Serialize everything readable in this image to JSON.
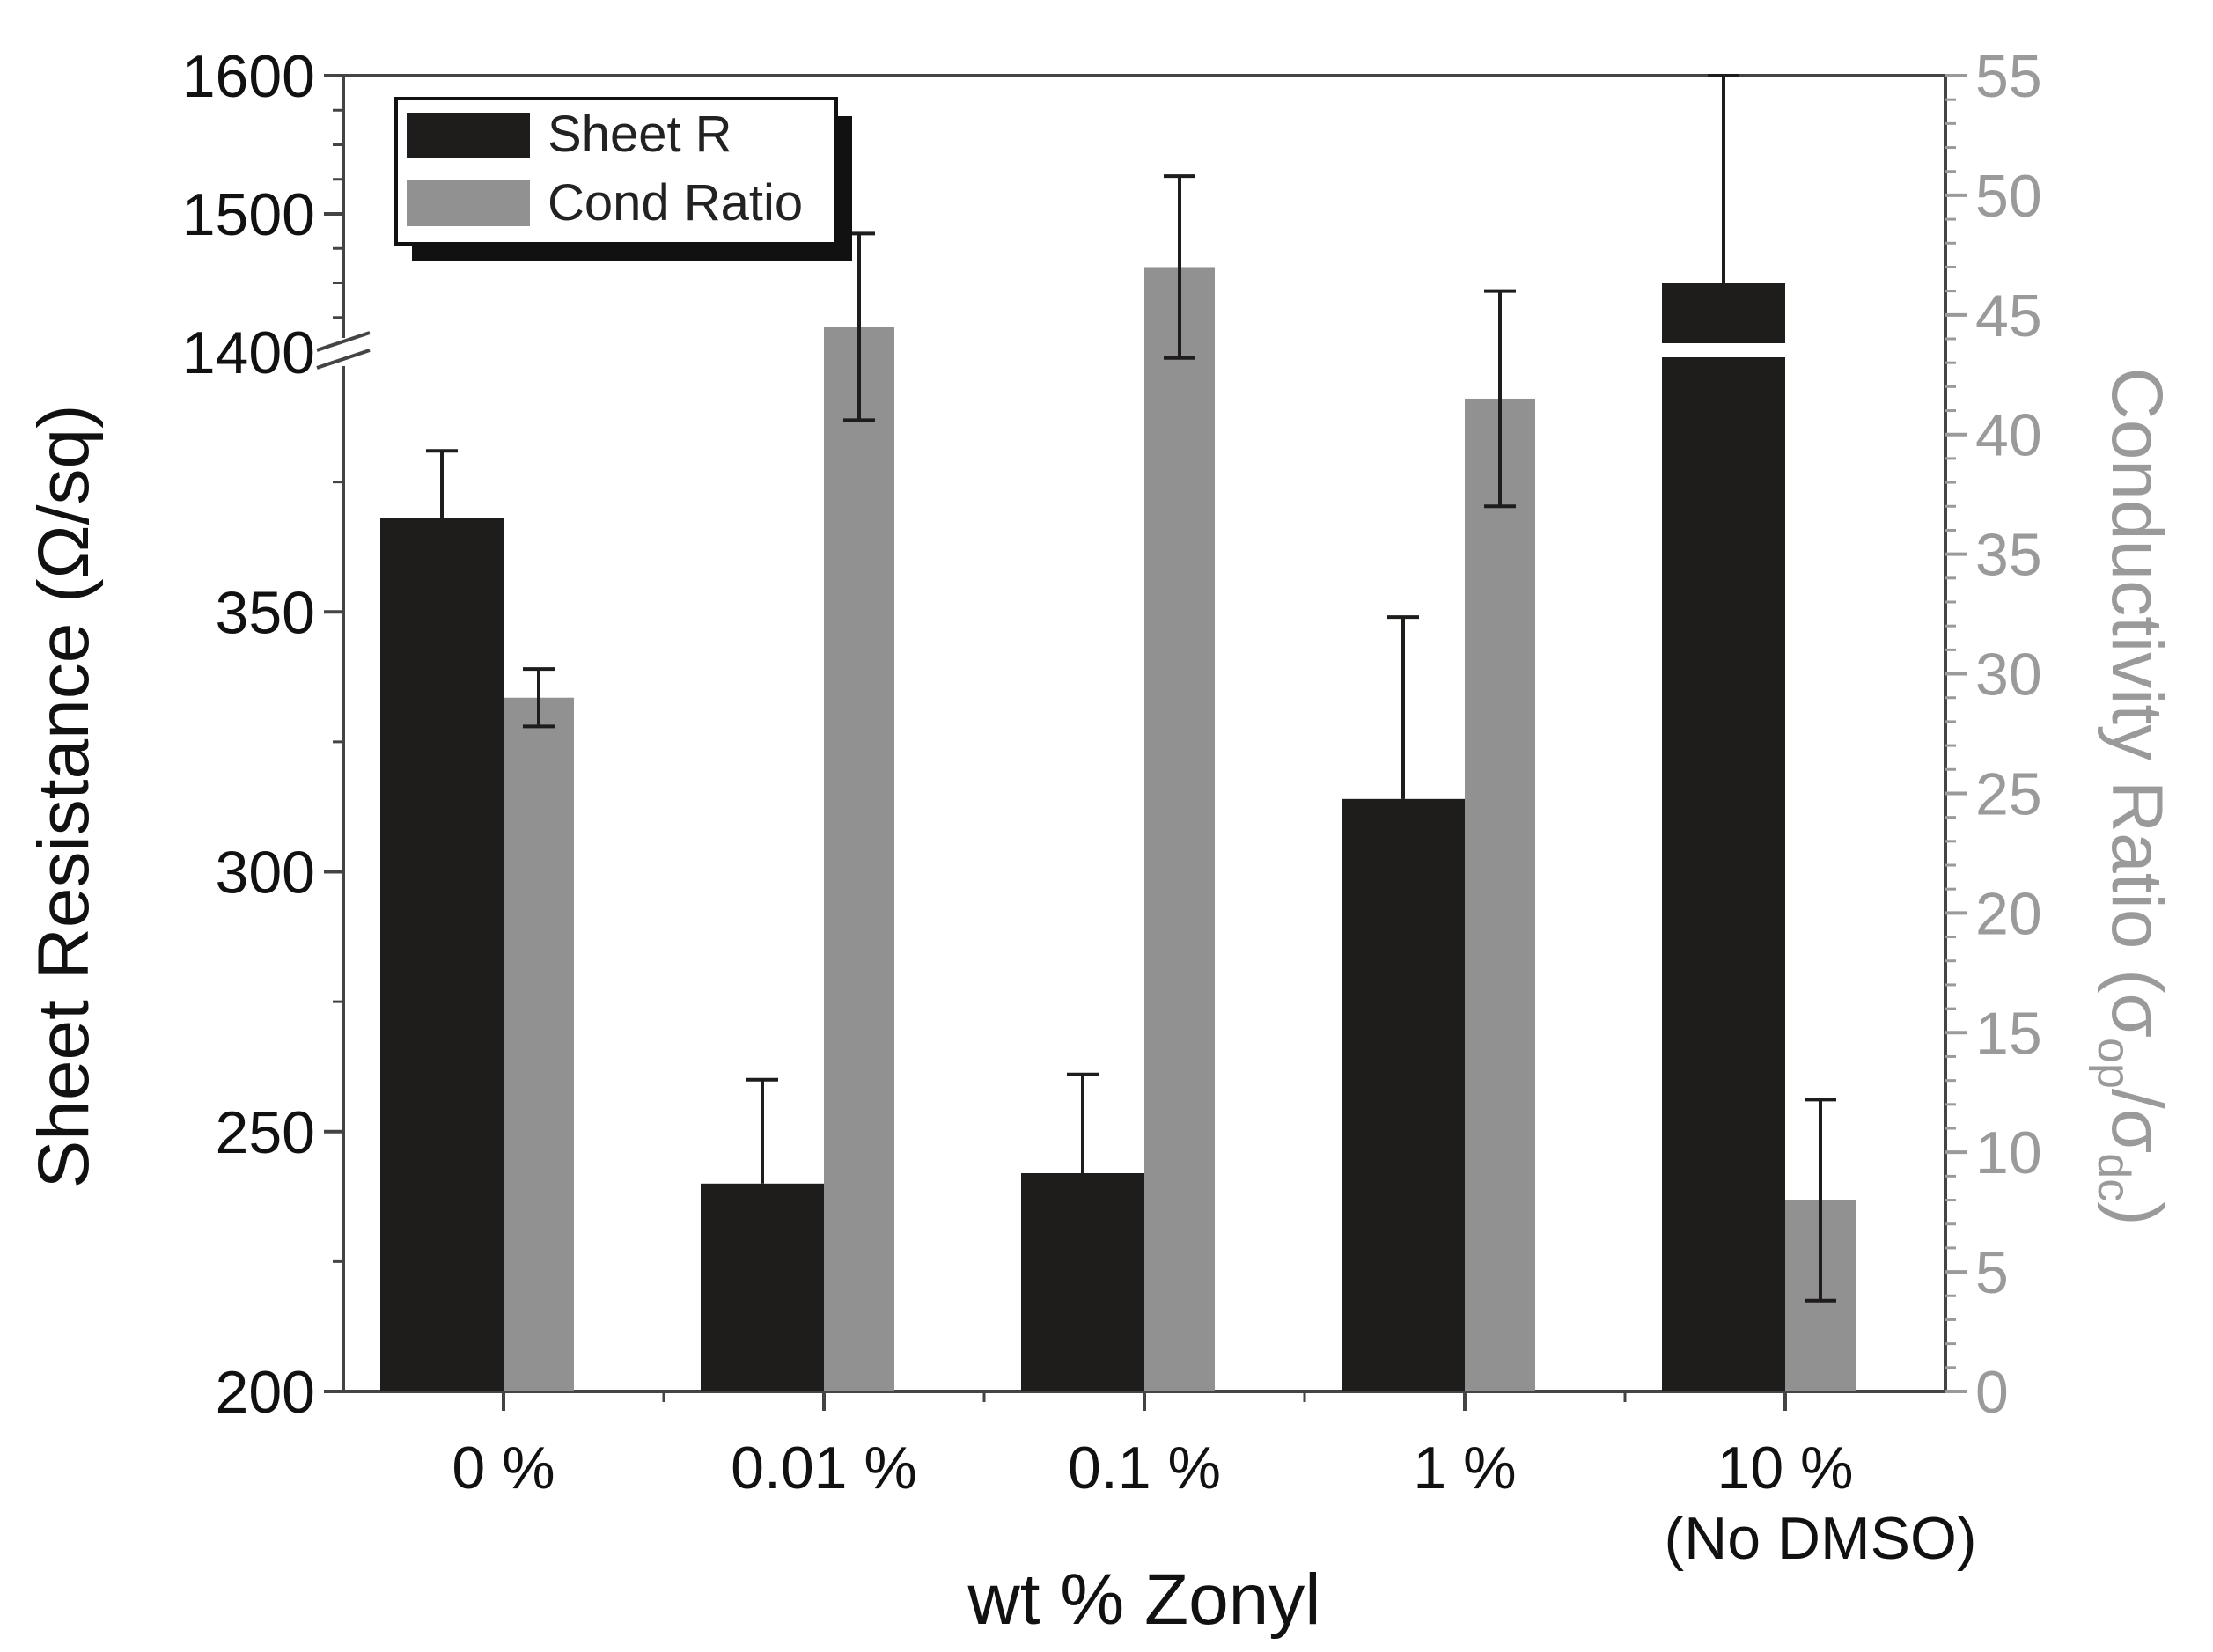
{
  "chart_data": {
    "type": "bar",
    "xlabel": "wt % Zonyl",
    "ylabel": "Sheet Resistance (Ω/sq)",
    "y2label": {
      "prefix": "Conductivity Ratio (σ",
      "sub1": "op",
      "mid": "/σ",
      "sub2": "dc",
      "suffix": ")"
    },
    "categories": [
      {
        "label": "0 %",
        "sublabel": ""
      },
      {
        "label": "0.01 %",
        "sublabel": ""
      },
      {
        "label": "0.1 %",
        "sublabel": ""
      },
      {
        "label": "1 %",
        "sublabel": ""
      },
      {
        "label": "10 %",
        "sublabel": "(No DMSO)"
      }
    ],
    "y_left": {
      "broken": true,
      "lower_range": [
        200,
        400
      ],
      "upper_range": [
        1400,
        1600
      ],
      "ticks": [
        200,
        250,
        300,
        350,
        1400,
        1500,
        1600
      ],
      "tick_labels": [
        "200",
        "250",
        "300",
        "350",
        "1400",
        "1500",
        "1600"
      ]
    },
    "y_right": {
      "range": [
        0,
        55
      ],
      "ticks": [
        0,
        5,
        10,
        15,
        20,
        25,
        30,
        35,
        40,
        45,
        50,
        55
      ],
      "tick_labels": [
        "0",
        "5",
        "10",
        "15",
        "20",
        "25",
        "30",
        "35",
        "40",
        "45",
        "50",
        "55"
      ]
    },
    "legend_position": "top-left",
    "series": [
      {
        "name": "Sheet R",
        "axis": "left",
        "color": "#1f1c1c",
        "values": [
          368,
          240,
          242,
          314,
          1450
        ],
        "errors": [
          13,
          20,
          19,
          35,
          150
        ]
      },
      {
        "name": "Cond Ratio",
        "axis": "right",
        "color": "#919191",
        "values": [
          29,
          44.5,
          47,
          41.5,
          8
        ],
        "errors": [
          1.2,
          3.9,
          3.8,
          4.5,
          4.2
        ]
      }
    ]
  }
}
